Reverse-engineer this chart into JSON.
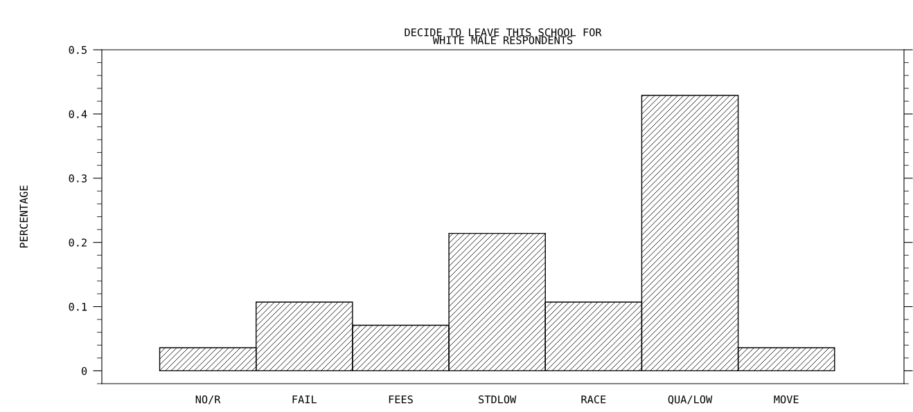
{
  "chart_data": {
    "type": "bar",
    "title": "DECIDE TO LEAVE THIS SCHOOL FOR\nWHITE MALE RESPONDENTS",
    "ylabel": "PERCENTAGE",
    "categories": [
      "NO/R",
      "FAIL",
      "FEES",
      "STDLOW",
      "RACE",
      "QUA/LOW",
      "MOVE"
    ],
    "values": [
      0.036,
      0.107,
      0.071,
      0.214,
      0.107,
      0.429,
      0.036
    ],
    "color": "#000000",
    "ylim": [
      -0.02,
      0.5
    ],
    "yticks": [
      0,
      0.1,
      0.2,
      0.3,
      0.4,
      0.5
    ],
    "grid": false,
    "legend": false
  }
}
